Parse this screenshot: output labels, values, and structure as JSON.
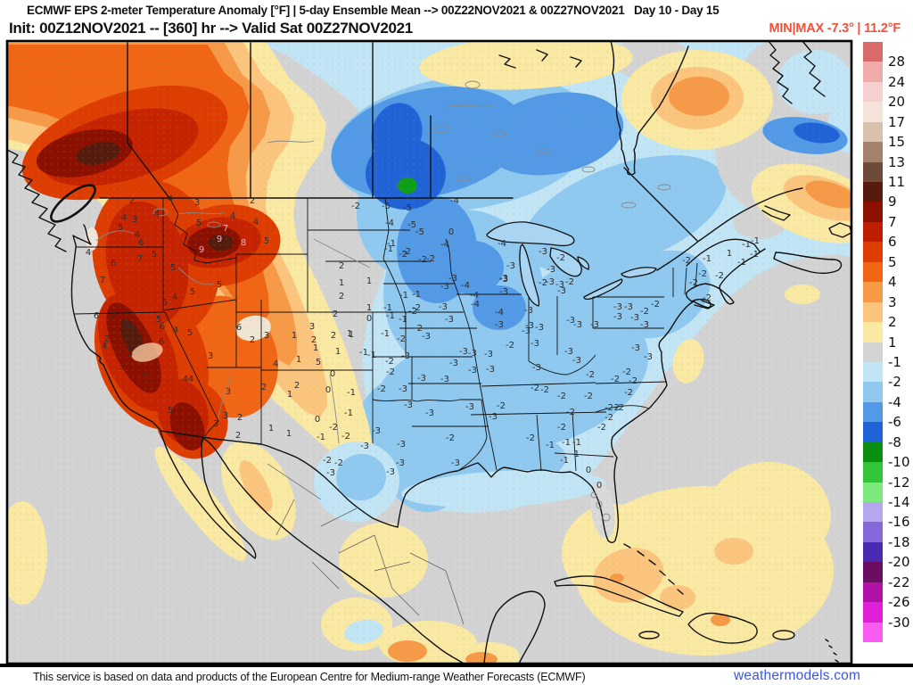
{
  "header": {
    "title_line": "ECMWF EPS 2-meter Temperature Anomaly [°F] | 5-day Ensemble Mean --> 00Z22NOV2021 & 00Z27NOV2021   Day 10 - Day 15",
    "init_line": "Init: 00Z12NOV2021 -- [360] hr --> Valid Sat 00Z27NOV2021",
    "minmax_label": "MIN|MAX -7.3° | 11.2°F",
    "minmax_color": "#f1503b"
  },
  "footer": {
    "attribution": "This service is based on data and products of the European Centre for Medium-range Weather Forecasts (ECMWF)",
    "brand": "weathermodels.com",
    "brand_color": "#3a57e8"
  },
  "colorbar": {
    "units": "°F",
    "labels": [
      "28",
      "24",
      "20",
      "17",
      "15",
      "13",
      "11",
      "9",
      "7",
      "6",
      "5",
      "4",
      "3",
      "2",
      "1",
      "-1",
      "-2",
      "-4",
      "-6",
      "-8",
      "-10",
      "-12",
      "-14",
      "-16",
      "-18",
      "-20",
      "-22",
      "-26",
      "-30"
    ],
    "colors": [
      "#d96a6a",
      "#efaaaa",
      "#f8cfcf",
      "#f5e3da",
      "#d9c2ac",
      "#a5806c",
      "#6f4a38",
      "#551c0e",
      "#8c1000",
      "#bf1d00",
      "#dd3d00",
      "#f06614",
      "#f79a48",
      "#fbc57e",
      "#fae9a2",
      "#d3d3d3",
      "#c2e5f6",
      "#8fc9f0",
      "#539ae6",
      "#2063d6",
      "#0a8f12",
      "#33c437",
      "#7ce87e",
      "#b5a6ee",
      "#8668da",
      "#4a2ab0",
      "#6d0d62",
      "#b112a8",
      "#e020d8",
      "#f85cf0"
    ],
    "stippled_indices": [
      0,
      1,
      2,
      3,
      5,
      6,
      7,
      25
    ]
  },
  "map": {
    "station_values": [
      [
        148,
        228,
        "2"
      ],
      [
        191,
        226,
        "4"
      ],
      [
        221,
        230,
        "3"
      ],
      [
        283,
        228,
        "2"
      ],
      [
        139,
        247,
        "4"
      ],
      [
        151,
        249,
        "3"
      ],
      [
        176,
        243,
        "4"
      ],
      [
        135,
        258,
        "5"
      ],
      [
        154,
        266,
        "4"
      ],
      [
        158,
        275,
        "6"
      ],
      [
        223,
        253,
        "5"
      ],
      [
        261,
        245,
        "4"
      ],
      [
        287,
        252,
        "4"
      ],
      [
        299,
        273,
        "5"
      ],
      [
        99,
        286,
        "4"
      ],
      [
        127,
        298,
        "6"
      ],
      [
        157,
        293,
        "7"
      ],
      [
        173,
        288,
        "5"
      ],
      [
        194,
        303,
        "5"
      ],
      [
        115,
        317,
        "7"
      ],
      [
        108,
        357,
        "6"
      ],
      [
        185,
        342,
        "5"
      ],
      [
        196,
        336,
        "4"
      ],
      [
        216,
        330,
        "5"
      ],
      [
        246,
        322,
        "5"
      ],
      [
        178,
        361,
        "5"
      ],
      [
        143,
        368,
        "4"
      ],
      [
        120,
        383,
        "2"
      ],
      [
        117,
        391,
        "4"
      ],
      [
        146,
        399,
        "3"
      ],
      [
        181,
        386,
        "6"
      ],
      [
        136,
        414,
        "3"
      ],
      [
        161,
        422,
        "5"
      ],
      [
        214,
        428,
        "4"
      ],
      [
        236,
        402,
        "3"
      ],
      [
        256,
        442,
        "3"
      ],
      [
        253,
        469,
        "3"
      ],
      [
        269,
        471,
        "2"
      ],
      [
        242,
        478,
        "3"
      ],
      [
        267,
        491,
        "2"
      ],
      [
        191,
        463,
        "5"
      ],
      [
        182,
        369,
        "6"
      ],
      [
        197,
        373,
        "4"
      ],
      [
        213,
        376,
        "5"
      ],
      [
        268,
        370,
        "6"
      ],
      [
        283,
        384,
        "2"
      ],
      [
        299,
        379,
        "3"
      ],
      [
        330,
        379,
        "1"
      ],
      [
        350,
        369,
        "3"
      ],
      [
        352,
        384,
        "2"
      ],
      [
        354,
        393,
        "1"
      ],
      [
        392,
        377,
        "1"
      ],
      [
        379,
        397,
        "1"
      ],
      [
        309,
        411,
        "4"
      ],
      [
        335,
        406,
        "1"
      ],
      [
        357,
        409,
        "5"
      ],
      [
        208,
        428,
        "4"
      ],
      [
        296,
        437,
        "2"
      ],
      [
        333,
        435,
        "2"
      ],
      [
        325,
        445,
        "1"
      ],
      [
        373,
        422,
        "0"
      ],
      [
        368,
        440,
        "0"
      ],
      [
        304,
        483,
        "1"
      ],
      [
        324,
        489,
        "1"
      ],
      [
        356,
        473,
        "0"
      ],
      [
        127,
        357,
        "7"
      ],
      [
        383,
        301,
        "2"
      ],
      [
        383,
        320,
        "1"
      ],
      [
        414,
        318,
        "1"
      ],
      [
        383,
        335,
        "2"
      ],
      [
        436,
        282,
        "-1"
      ],
      [
        452,
        288,
        "-2"
      ],
      [
        483,
        293,
        "-2"
      ],
      [
        467,
        333,
        "-1"
      ],
      [
        435,
        348,
        "-1"
      ],
      [
        467,
        348,
        "-2"
      ],
      [
        414,
        348,
        "1"
      ],
      [
        414,
        360,
        "0"
      ],
      [
        452,
        361,
        "-1"
      ],
      [
        469,
        371,
        "-2"
      ],
      [
        376,
        355,
        "2"
      ],
      [
        394,
        378,
        "1"
      ],
      [
        432,
        377,
        "-1"
      ],
      [
        374,
        379,
        "2"
      ],
      [
        428,
        439,
        "-2"
      ],
      [
        408,
        398,
        "-1"
      ],
      [
        417,
        401,
        "-1"
      ],
      [
        433,
        234,
        "-5"
      ],
      [
        457,
        236,
        "-5"
      ],
      [
        437,
        253,
        "-4"
      ],
      [
        471,
        263,
        "-5"
      ],
      [
        510,
        228,
        "-4"
      ],
      [
        506,
        263,
        "0"
      ],
      [
        499,
        277,
        "-4"
      ],
      [
        563,
        276,
        "-4"
      ],
      [
        439,
        276,
        "-1"
      ],
      [
        456,
        285,
        "-2"
      ],
      [
        474,
        294,
        "-2"
      ],
      [
        399,
        234,
        "-2"
      ],
      [
        462,
        255,
        "-5"
      ],
      [
        508,
        315,
        "-3"
      ],
      [
        522,
        323,
        "-4"
      ],
      [
        499,
        324,
        "-3"
      ],
      [
        565,
        315,
        "-3"
      ],
      [
        565,
        330,
        "-3"
      ],
      [
        532,
        334,
        "-4"
      ],
      [
        497,
        347,
        "-3"
      ],
      [
        533,
        344,
        "-4"
      ],
      [
        504,
        361,
        "-3"
      ],
      [
        560,
        353,
        "-4"
      ],
      [
        560,
        367,
        "-3"
      ],
      [
        593,
        351,
        "-3"
      ],
      [
        594,
        368,
        "-3"
      ],
      [
        453,
        334,
        "-1"
      ],
      [
        463,
        352,
        "-2"
      ],
      [
        438,
        357,
        "-1"
      ],
      [
        450,
        383,
        "-2"
      ],
      [
        478,
        380,
        "-3"
      ],
      [
        455,
        402,
        "-3"
      ],
      [
        437,
        408,
        "-2"
      ],
      [
        452,
        439,
        "-3"
      ],
      [
        458,
        457,
        "-3"
      ],
      [
        482,
        466,
        "-3"
      ],
      [
        527,
        459,
        "-3"
      ],
      [
        499,
        428,
        "-3"
      ],
      [
        520,
        397,
        "-3"
      ],
      [
        530,
        399,
        "-3"
      ],
      [
        548,
        400,
        "-3"
      ],
      [
        509,
        410,
        "-3"
      ],
      [
        530,
        418,
        "-3"
      ],
      [
        550,
        417,
        "-3"
      ],
      [
        572,
        390,
        "-2"
      ],
      [
        590,
        374,
        "-3"
      ],
      [
        605,
        370,
        "-3"
      ],
      [
        600,
        388,
        "-3"
      ],
      [
        640,
        362,
        "-3"
      ],
      [
        648,
        367,
        "-3"
      ],
      [
        667,
        367,
        "-3"
      ],
      [
        638,
        397,
        "-3"
      ],
      [
        647,
        407,
        "-3"
      ],
      [
        602,
        415,
        "-3"
      ],
      [
        600,
        438,
        "-2"
      ],
      [
        611,
        440,
        "-2"
      ],
      [
        630,
        447,
        "-2"
      ],
      [
        562,
        458,
        "-2"
      ],
      [
        553,
        470,
        "-3"
      ],
      [
        630,
        482,
        "-2"
      ],
      [
        640,
        465,
        "-2"
      ],
      [
        660,
        447,
        "-2"
      ],
      [
        690,
        460,
        "-2"
      ],
      [
        690,
        428,
        "-2"
      ],
      [
        662,
        423,
        "-2"
      ],
      [
        573,
        301,
        "-3"
      ],
      [
        565,
        316,
        "-3"
      ],
      [
        609,
        320,
        "-2"
      ],
      [
        617,
        319,
        "-3"
      ],
      [
        628,
        322,
        "-3"
      ],
      [
        639,
        319,
        "-2"
      ],
      [
        630,
        329,
        "-3"
      ],
      [
        618,
        305,
        "-3"
      ],
      [
        609,
        285,
        "-3"
      ],
      [
        629,
        292,
        "-2"
      ],
      [
        770,
        295,
        "-2"
      ],
      [
        778,
        320,
        "-2"
      ],
      [
        837,
        277,
        "-1"
      ],
      [
        847,
        273,
        "-1"
      ],
      [
        846,
        288,
        "-1"
      ],
      [
        832,
        297,
        "-1"
      ],
      [
        818,
        287,
        "1"
      ],
      [
        793,
        293,
        "-1"
      ],
      [
        788,
        310,
        "-2"
      ],
      [
        807,
        312,
        "-2"
      ],
      [
        793,
        337,
        "-2"
      ],
      [
        693,
        347,
        "-3"
      ],
      [
        705,
        347,
        "-3"
      ],
      [
        735,
        344,
        "-2"
      ],
      [
        723,
        352,
        "-2"
      ],
      [
        693,
        358,
        "-3"
      ],
      [
        712,
        359,
        "-3"
      ],
      [
        723,
        367,
        "-3"
      ],
      [
        713,
        393,
        "-3"
      ],
      [
        727,
        403,
        "-3"
      ],
      [
        703,
        420,
        "-2"
      ],
      [
        710,
        430,
        "-2"
      ],
      [
        705,
        443,
        "-2"
      ],
      [
        683,
        460,
        "-2"
      ],
      [
        695,
        460,
        "-2"
      ],
      [
        675,
        482,
        "-2"
      ],
      [
        683,
        471,
        "-2"
      ],
      [
        635,
        499,
        "-1"
      ],
      [
        647,
        499,
        "-1"
      ],
      [
        505,
        494,
        "-2"
      ],
      [
        595,
        494,
        "-2"
      ],
      [
        617,
        502,
        "-1"
      ],
      [
        633,
        519,
        "-1"
      ],
      [
        645,
        512,
        "-1"
      ],
      [
        660,
        530,
        "0"
      ],
      [
        672,
        547,
        "0"
      ],
      [
        511,
        522,
        "-3"
      ],
      [
        450,
        501,
        "-3"
      ],
      [
        438,
        532,
        "-3"
      ],
      [
        449,
        522,
        "-3"
      ],
      [
        422,
        486,
        "-3"
      ],
      [
        409,
        503,
        "-3"
      ],
      [
        367,
        519,
        "-2"
      ],
      [
        380,
        522,
        "-2"
      ],
      [
        371,
        533,
        "-3"
      ],
      [
        388,
        492,
        "-2"
      ],
      [
        394,
        443,
        "-1"
      ],
      [
        391,
        466,
        "-1"
      ],
      [
        374,
        482,
        "-2"
      ],
      [
        360,
        493,
        "-1"
      ],
      [
        473,
        427,
        "-3"
      ],
      [
        438,
        420,
        "-2"
      ]
    ],
    "light_station_values": [
      [
        253,
        259,
        "7"
      ],
      [
        246,
        271,
        "9"
      ],
      [
        273,
        275,
        "8"
      ],
      [
        226,
        283,
        "9"
      ]
    ]
  }
}
